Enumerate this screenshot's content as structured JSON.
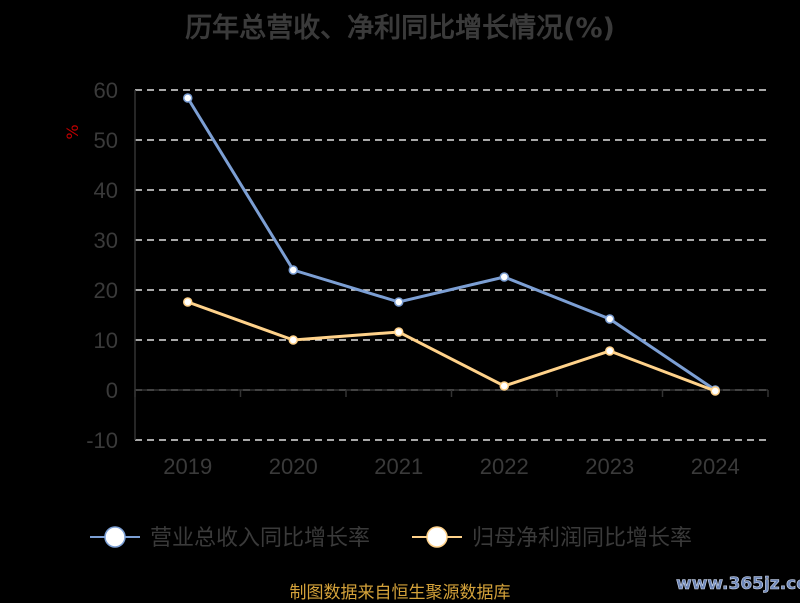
{
  "chart_data": {
    "type": "line",
    "title": "历年总营收、净利同比增长情况(%)",
    "ylabel": "%",
    "xlabel": "",
    "ylim": [
      -10,
      60
    ],
    "yticks": [
      -10,
      0,
      10,
      20,
      30,
      40,
      50,
      60
    ],
    "categories": [
      "2019",
      "2020",
      "2021",
      "2022",
      "2023",
      "2024"
    ],
    "grid": true,
    "legend_position": "bottom",
    "series": [
      {
        "name": "营业总收入同比增长率",
        "color": "#7c9fd4",
        "values": [
          58.4,
          24.0,
          17.6,
          22.6,
          14.2,
          0.0
        ]
      },
      {
        "name": "归母净利润同比增长率",
        "color": "#ffd28a",
        "values": [
          17.6,
          10.0,
          11.6,
          0.8,
          7.8,
          -0.2
        ]
      }
    ]
  },
  "source": "制图数据来自恒生聚源数据库",
  "watermark": "www.365jz.com"
}
